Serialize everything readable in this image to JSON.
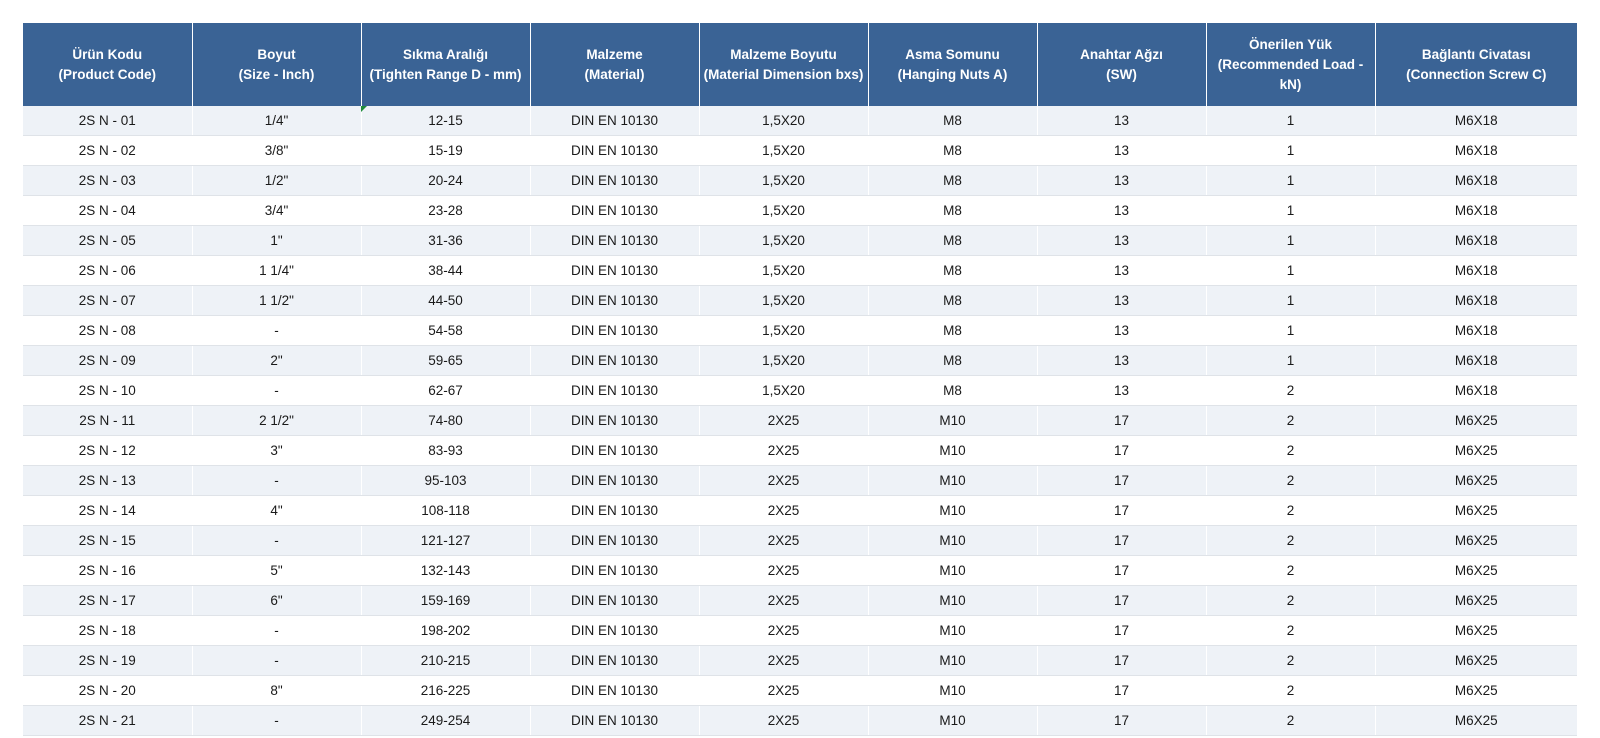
{
  "table": {
    "headers": [
      {
        "line1": "Ürün Kodu",
        "line2": "(Product Code)"
      },
      {
        "line1": "Boyut",
        "line2": "(Size - Inch)"
      },
      {
        "line1": "Sıkma Aralığı",
        "line2": "(Tighten Range D - mm)"
      },
      {
        "line1": "Malzeme",
        "line2": "(Material)"
      },
      {
        "line1": "Malzeme Boyutu",
        "line2": "(Material Dimension bxs)"
      },
      {
        "line1": "Asma Somunu",
        "line2": "(Hanging Nuts A)"
      },
      {
        "line1": "Anahtar Ağzı",
        "line2": "(SW)"
      },
      {
        "line1": "Önerilen Yük",
        "line2": "(Recommended Load - kN)"
      },
      {
        "line1": "Bağlantı Civatası",
        "line2": "(Connection Screw C)"
      }
    ],
    "rows": [
      [
        "2S N - 01",
        "1/4\"",
        "12-15",
        "DIN EN 10130",
        "1,5X20",
        "M8",
        "13",
        "1",
        "M6X18"
      ],
      [
        "2S N - 02",
        "3/8\"",
        "15-19",
        "DIN EN 10130",
        "1,5X20",
        "M8",
        "13",
        "1",
        "M6X18"
      ],
      [
        "2S N - 03",
        "1/2\"",
        "20-24",
        "DIN EN 10130",
        "1,5X20",
        "M8",
        "13",
        "1",
        "M6X18"
      ],
      [
        "2S N - 04",
        "3/4\"",
        "23-28",
        "DIN EN 10130",
        "1,5X20",
        "M8",
        "13",
        "1",
        "M6X18"
      ],
      [
        "2S N - 05",
        "1\"",
        "31-36",
        "DIN EN 10130",
        "1,5X20",
        "M8",
        "13",
        "1",
        "M6X18"
      ],
      [
        "2S N - 06",
        "1 1/4\"",
        "38-44",
        "DIN EN 10130",
        "1,5X20",
        "M8",
        "13",
        "1",
        "M6X18"
      ],
      [
        "2S N - 07",
        "1 1/2\"",
        "44-50",
        "DIN EN 10130",
        "1,5X20",
        "M8",
        "13",
        "1",
        "M6X18"
      ],
      [
        "2S N - 08",
        "-",
        "54-58",
        "DIN EN 10130",
        "1,5X20",
        "M8",
        "13",
        "1",
        "M6X18"
      ],
      [
        "2S N - 09",
        "2\"",
        "59-65",
        "DIN EN 10130",
        "1,5X20",
        "M8",
        "13",
        "1",
        "M6X18"
      ],
      [
        "2S N - 10",
        "-",
        "62-67",
        "DIN EN 10130",
        "1,5X20",
        "M8",
        "13",
        "2",
        "M6X18"
      ],
      [
        "2S N - 11",
        "2 1/2\"",
        "74-80",
        "DIN EN 10130",
        "2X25",
        "M10",
        "17",
        "2",
        "M6X25"
      ],
      [
        "2S N - 12",
        "3\"",
        "83-93",
        "DIN EN 10130",
        "2X25",
        "M10",
        "17",
        "2",
        "M6X25"
      ],
      [
        "2S N - 13",
        "-",
        "95-103",
        "DIN EN 10130",
        "2X25",
        "M10",
        "17",
        "2",
        "M6X25"
      ],
      [
        "2S N - 14",
        "4\"",
        "108-118",
        "DIN EN 10130",
        "2X25",
        "M10",
        "17",
        "2",
        "M6X25"
      ],
      [
        "2S N - 15",
        "-",
        "121-127",
        "DIN EN 10130",
        "2X25",
        "M10",
        "17",
        "2",
        "M6X25"
      ],
      [
        "2S N - 16",
        "5\"",
        "132-143",
        "DIN EN 10130",
        "2X25",
        "M10",
        "17",
        "2",
        "M6X25"
      ],
      [
        "2S N - 17",
        "6\"",
        "159-169",
        "DIN EN 10130",
        "2X25",
        "M10",
        "17",
        "2",
        "M6X25"
      ],
      [
        "2S N - 18",
        "-",
        "198-202",
        "DIN EN 10130",
        "2X25",
        "M10",
        "17",
        "2",
        "M6X25"
      ],
      [
        "2S N - 19",
        "-",
        "210-215",
        "DIN EN 10130",
        "2X25",
        "M10",
        "17",
        "2",
        "M6X25"
      ],
      [
        "2S N - 20",
        "8\"",
        "216-225",
        "DIN EN 10130",
        "2X25",
        "M10",
        "17",
        "2",
        "M6X25"
      ],
      [
        "2S N - 21",
        "-",
        "249-254",
        "DIN EN 10130",
        "2X25",
        "M10",
        "17",
        "2",
        "M6X25"
      ]
    ]
  },
  "colors": {
    "header_bg": "#3a6395",
    "header_text": "#ffffff",
    "row_alt_bg": "#eef2f7",
    "row_bg": "#ffffff",
    "cell_marker": "#1e8c3a"
  }
}
